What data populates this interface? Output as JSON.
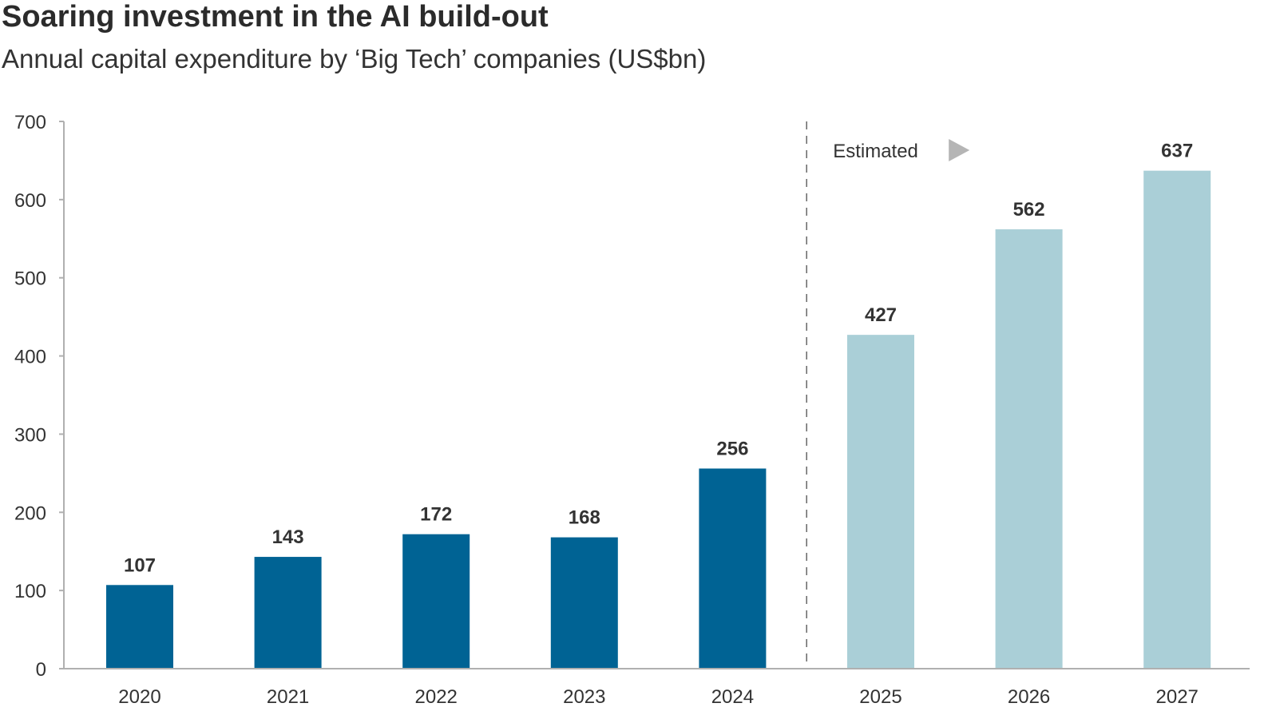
{
  "chart_data": {
    "type": "bar",
    "title": "Soaring investment in the AI build-out",
    "subtitle": "Annual capital expenditure by ‘Big Tech’ companies (US$bn)",
    "xlabel": "",
    "ylabel": "",
    "ylim": [
      0,
      700
    ],
    "yticks": [
      0,
      100,
      200,
      300,
      400,
      500,
      600,
      700
    ],
    "categories": [
      "2020",
      "2021",
      "2022",
      "2023",
      "2024",
      "2025",
      "2026",
      "2027"
    ],
    "values": [
      107,
      143,
      172,
      168,
      256,
      427,
      562,
      637
    ],
    "estimated_from_index": 5,
    "estimated_label": "Estimated",
    "grid": false,
    "colors": {
      "actual": "#006394",
      "estimated": "#aacfd7",
      "axis": "#b0b0b0",
      "arrow": "#b5b5b5"
    }
  }
}
